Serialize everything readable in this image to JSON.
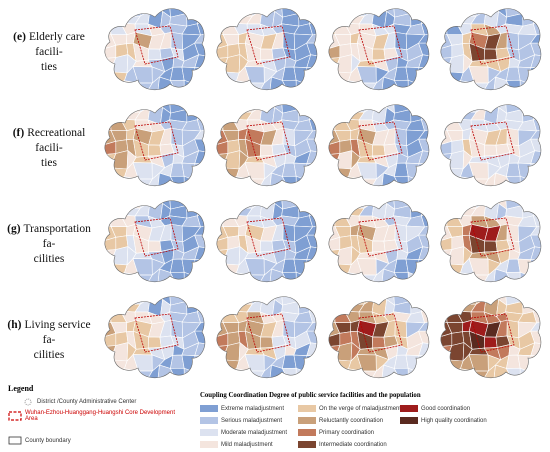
{
  "rows": [
    {
      "tag": "(e)",
      "lines": [
        "Elderly care facili-",
        "ties"
      ]
    },
    {
      "tag": "(f)",
      "lines": [
        "Recreational facili-",
        "ties"
      ]
    },
    {
      "tag": "(g)",
      "lines": [
        "Transportation fa-",
        "cilities"
      ]
    },
    {
      "tag": "(h)",
      "lines": [
        "Living service fa-",
        "cilities"
      ]
    }
  ],
  "legend": {
    "title": "Legend",
    "items": [
      "District /County Administrative Center",
      "Wuhan-Ezhou-Huanggang-Huangshi Core Development Area",
      "County boundary"
    ]
  },
  "classes": {
    "title": "Coupling Coordination Degree of public service facilities and the population",
    "items": [
      {
        "name": "Extreme maladjustment",
        "color": "#7f9fd3"
      },
      {
        "name": "Serious maladjustment",
        "color": "#b3c4e5"
      },
      {
        "name": "Moderate maladjustment",
        "color": "#dce2f0"
      },
      {
        "name": "Mild maladjustment",
        "color": "#f4e5de"
      },
      {
        "name": "On the verge of maladjustment",
        "color": "#e8c8a4"
      },
      {
        "name": "Reluctantly coordination",
        "color": "#c9a07a"
      },
      {
        "name": "Primary coordination",
        "color": "#c27a5c"
      },
      {
        "name": "Intermediate coordination",
        "color": "#7b4530"
      },
      {
        "name": "Good coordination",
        "color": "#9e1c1c"
      },
      {
        "name": "High quality coordination",
        "color": "#5a2a20"
      }
    ]
  }
}
